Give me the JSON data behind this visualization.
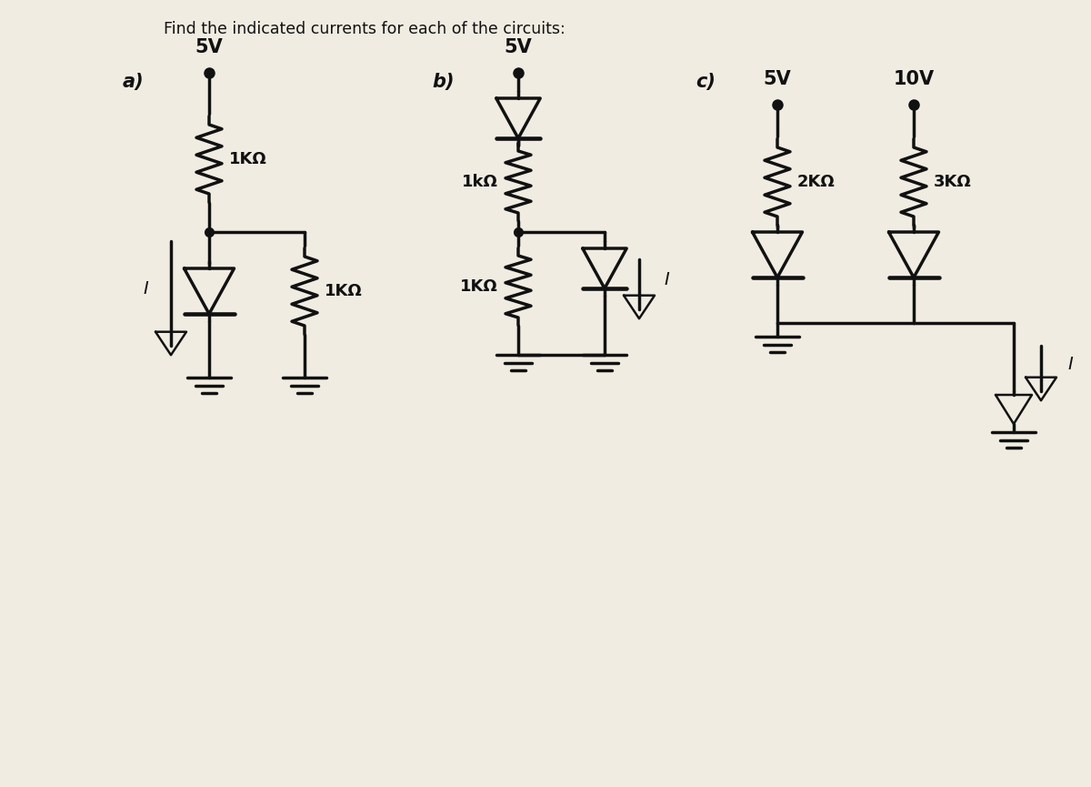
{
  "title": "Find the indicated currents for each of the circuits:",
  "bg_color": "#f0ece2",
  "ink_color": "#111111",
  "label_a": "a)",
  "label_b": "b)",
  "label_c": "c)",
  "circuit_a": {
    "voltage_top": "5V",
    "resistor1_label": "1KΩ",
    "resistor2_label": "1KΩ",
    "current_label": "I"
  },
  "circuit_b": {
    "voltage_top": "5V",
    "resistor1_label": "1kΩ",
    "resistor2_label": "1KΩ",
    "current_label": "I"
  },
  "circuit_c": {
    "voltage_left": "5V",
    "voltage_right": "10V",
    "resistor1_label": "2KΩ",
    "resistor2_label": "3KΩ",
    "current_label": "I"
  }
}
